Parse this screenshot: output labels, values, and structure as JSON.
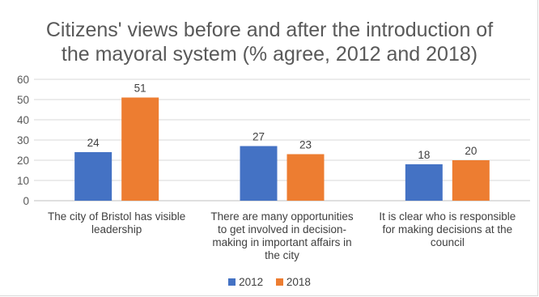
{
  "chart_data": {
    "type": "bar",
    "title_lines": [
      "Citizens' views before and after the introduction of",
      "the mayoral system (% agree, 2012 and 2018)"
    ],
    "categories": [
      [
        "The city of Bristol has visible",
        "leadership"
      ],
      [
        "There are many opportunities",
        "to get involved in decision-",
        "making in important affairs in",
        "the city"
      ],
      [
        "It is clear who is responsible",
        "for making decisions at the",
        "council"
      ]
    ],
    "series": [
      {
        "name": "2012",
        "color": "#4472c4",
        "values": [
          24,
          27,
          18
        ]
      },
      {
        "name": "2018",
        "color": "#ed7d31",
        "values": [
          51,
          23,
          20
        ]
      }
    ],
    "ylim": [
      0,
      60
    ],
    "yticks": [
      "0",
      "10",
      "20",
      "30",
      "40",
      "50",
      "60"
    ],
    "grid": true,
    "legend_position": "bottom",
    "data_labels": true
  }
}
